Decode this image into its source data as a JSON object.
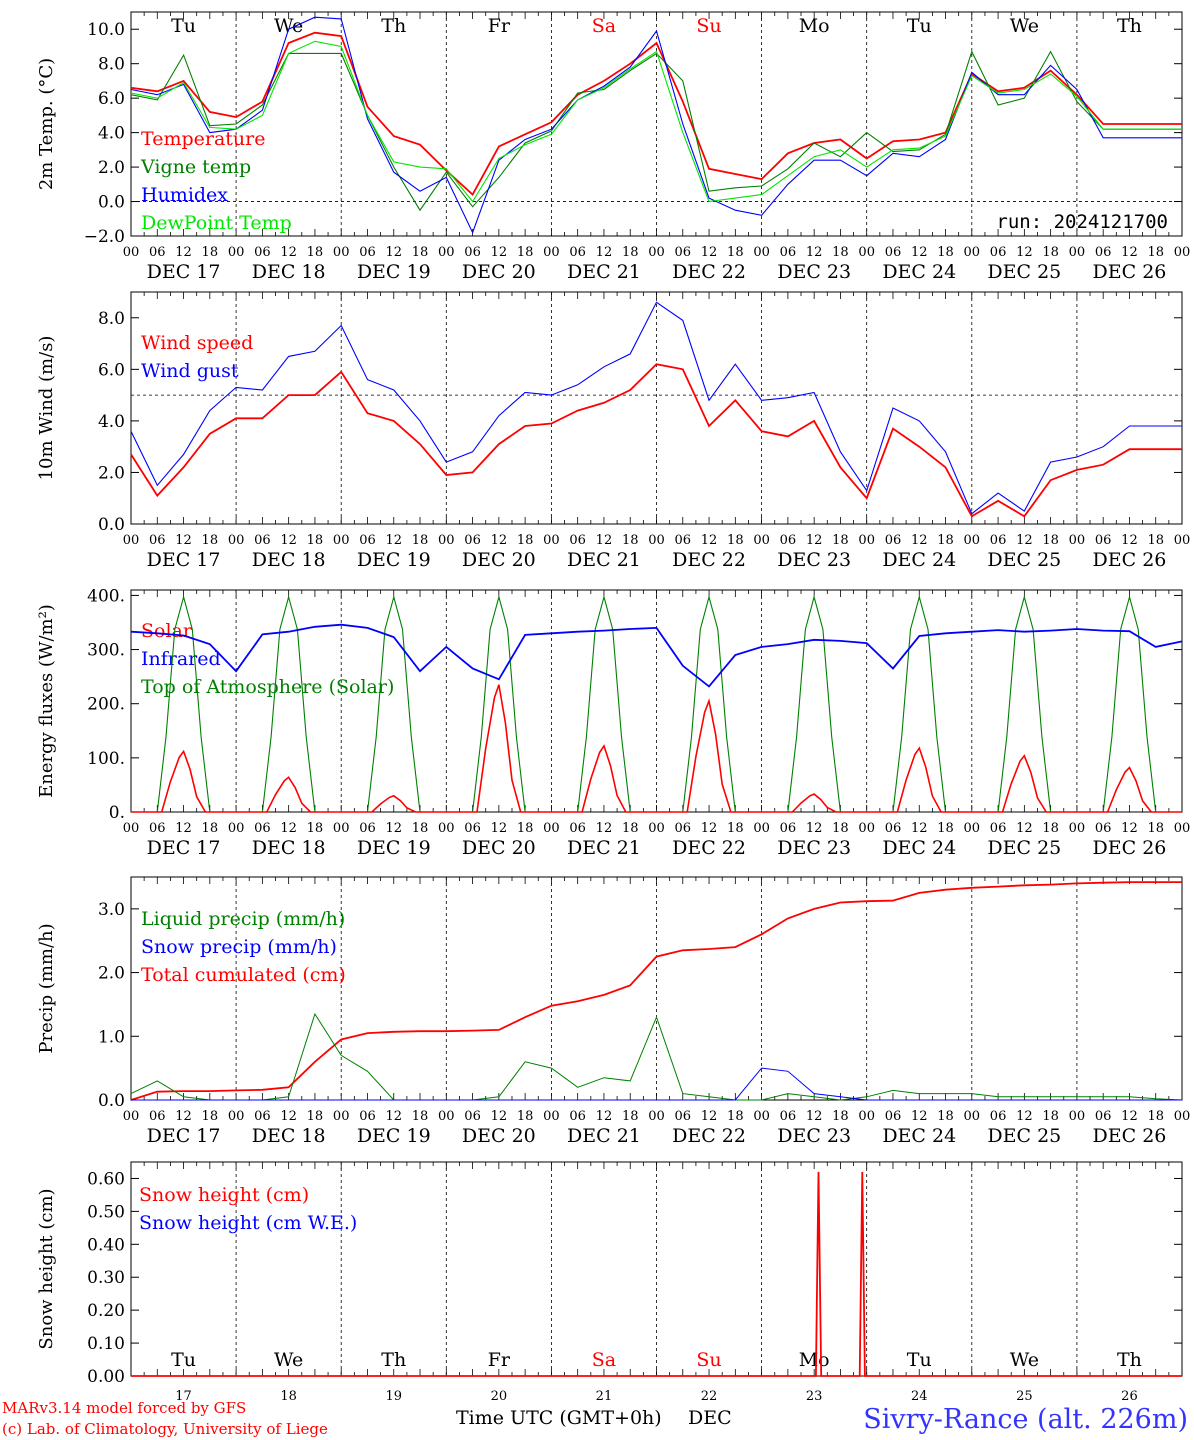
{
  "run_label": "run: 2024121700",
  "footer": {
    "credit_line1": "MARv3.14 model forced by GFS",
    "credit_line2": "(c) Lab. of Climatology, University of Liege",
    "xaxis_title": "Time UTC (GMT+0h)",
    "month_label": "DEC",
    "station": "Sivry-Rance (alt. 226m)"
  },
  "colors": {
    "red": "#ff0000",
    "green": "#008000",
    "blue": "#0000ff",
    "lime": "#00e600",
    "weekend": "#ff0000"
  },
  "time_axis": {
    "hour_ticks": [
      "00",
      "06",
      "12",
      "18"
    ],
    "last_tick": "00",
    "day_labels": [
      "DEC 17",
      "DEC 18",
      "DEC 19",
      "DEC 20",
      "DEC 21",
      "DEC 22",
      "DEC 23",
      "DEC 24",
      "DEC 25",
      "DEC 26"
    ],
    "weekdays": [
      "Tu",
      "We",
      "Th",
      "Fr",
      "Sa",
      "Su",
      "Mo",
      "Tu",
      "We",
      "Th"
    ],
    "weekend_days": [
      4,
      5
    ],
    "day_numbers": [
      "17",
      "18",
      "19",
      "20",
      "21",
      "22",
      "23",
      "24",
      "25",
      "26"
    ]
  },
  "chart_data": [
    {
      "type": "line",
      "ylabel": "2m Temp. (°C)",
      "ylim": [
        -2,
        11
      ],
      "yticks": [
        "−2.0",
        "0.0",
        "2.0",
        "4.0",
        "6.0",
        "8.0",
        "10.0"
      ],
      "yticks_values": [
        -2,
        0,
        2,
        4,
        6,
        8,
        10
      ],
      "reference_line": 0,
      "legend": [
        "Temperature",
        "Vigne temp",
        "Humidex",
        "DewPoint Temp"
      ],
      "x_hours": [
        0,
        6,
        12,
        18,
        24,
        30,
        36,
        42,
        48,
        54,
        60,
        66,
        72,
        78,
        84,
        90,
        96,
        102,
        108,
        114,
        120,
        126,
        132,
        138,
        144,
        150,
        156,
        162,
        168,
        174,
        180,
        186,
        192,
        198,
        204,
        210,
        216,
        222,
        228,
        234,
        240
      ],
      "series": [
        {
          "name": "Temperature",
          "color": "#ff0000",
          "values": [
            6.6,
            6.4,
            7.0,
            5.2,
            4.9,
            5.8,
            9.2,
            9.8,
            9.6,
            5.5,
            3.8,
            3.3,
            1.8,
            0.4,
            3.2,
            3.9,
            4.6,
            6.2,
            7.0,
            8.0,
            9.2,
            5.8,
            1.9,
            1.6,
            1.3,
            2.8,
            3.4,
            3.6,
            2.5,
            3.5,
            3.6,
            4.0,
            7.4,
            6.4,
            6.6,
            7.6,
            6.2,
            4.5,
            4.5,
            4.5,
            4.5
          ]
        },
        {
          "name": "Vigne temp",
          "color": "#008000",
          "values": [
            6.2,
            5.9,
            8.5,
            4.4,
            4.5,
            5.6,
            8.6,
            8.6,
            8.6,
            5.0,
            2.0,
            -0.5,
            1.7,
            -0.3,
            1.4,
            3.4,
            4.1,
            6.3,
            6.5,
            7.6,
            8.6,
            7.0,
            0.6,
            0.8,
            0.9,
            1.9,
            3.4,
            2.6,
            4.0,
            2.9,
            3.0,
            3.9,
            8.7,
            5.6,
            6.0,
            8.7,
            5.8,
            4.2,
            4.2,
            4.2,
            4.2
          ]
        },
        {
          "name": "Humidex",
          "color": "#0000ff",
          "values": [
            6.5,
            6.2,
            6.8,
            4.0,
            4.2,
            5.3,
            10.0,
            10.7,
            10.6,
            4.8,
            1.7,
            0.6,
            1.4,
            -1.8,
            2.4,
            3.6,
            4.2,
            5.9,
            6.7,
            7.8,
            9.9,
            4.5,
            0.2,
            -0.5,
            -0.8,
            1.0,
            2.4,
            2.4,
            1.5,
            2.8,
            2.6,
            3.6,
            7.5,
            6.2,
            6.2,
            7.9,
            6.5,
            3.7,
            3.7,
            3.7,
            3.7
          ]
        },
        {
          "name": "DewPoint Temp",
          "color": "#00e600",
          "values": [
            6.3,
            6.0,
            6.9,
            4.3,
            4.2,
            5.0,
            8.6,
            9.3,
            9.0,
            5.0,
            2.3,
            2.0,
            1.9,
            0.0,
            2.5,
            3.3,
            3.9,
            5.9,
            6.6,
            7.7,
            8.7,
            4.0,
            0.0,
            0.2,
            0.4,
            1.5,
            2.6,
            3.0,
            2.0,
            3.0,
            3.1,
            3.8,
            7.3,
            6.3,
            6.5,
            7.4,
            6.1,
            4.2,
            4.2,
            4.2,
            4.2
          ]
        }
      ]
    },
    {
      "type": "line",
      "ylabel": "10m Wind (m/s)",
      "ylim": [
        0,
        9
      ],
      "yticks": [
        "0.0",
        "2.0",
        "4.0",
        "6.0",
        "8.0"
      ],
      "yticks_values": [
        0,
        2,
        4,
        6,
        8
      ],
      "reference_line": 5,
      "legend": [
        "Wind speed",
        "Wind gust"
      ],
      "x_hours": [
        0,
        6,
        12,
        18,
        24,
        30,
        36,
        42,
        48,
        54,
        60,
        66,
        72,
        78,
        84,
        90,
        96,
        102,
        108,
        114,
        120,
        126,
        132,
        138,
        144,
        150,
        156,
        162,
        168,
        174,
        180,
        186,
        192,
        198,
        204,
        210,
        216,
        222,
        228,
        234,
        240
      ],
      "series": [
        {
          "name": "Wind speed",
          "color": "#ff0000",
          "values": [
            2.7,
            1.1,
            2.2,
            3.5,
            4.1,
            4.1,
            5.0,
            5.0,
            5.9,
            4.3,
            4.0,
            3.1,
            1.9,
            2.0,
            3.1,
            3.8,
            3.9,
            4.4,
            4.7,
            5.2,
            6.2,
            6.0,
            3.8,
            4.8,
            3.6,
            3.4,
            4.0,
            2.2,
            1.0,
            3.7,
            3.0,
            2.2,
            0.3,
            0.9,
            0.3,
            1.7,
            2.1,
            2.3,
            2.9,
            2.9,
            2.9
          ]
        },
        {
          "name": "Wind gust",
          "color": "#0000ff",
          "values": [
            3.6,
            1.5,
            2.7,
            4.4,
            5.3,
            5.2,
            6.5,
            6.7,
            7.7,
            5.6,
            5.2,
            4.0,
            2.4,
            2.8,
            4.2,
            5.1,
            5.0,
            5.4,
            6.1,
            6.6,
            8.6,
            7.9,
            4.8,
            6.2,
            4.8,
            4.9,
            5.1,
            2.8,
            1.3,
            4.5,
            4.0,
            2.8,
            0.4,
            1.2,
            0.5,
            2.4,
            2.6,
            3.0,
            3.8,
            3.8,
            3.8
          ]
        }
      ]
    },
    {
      "type": "line",
      "ylabel": "Energy fluxes (W/m²)",
      "ylim": [
        0,
        410
      ],
      "yticks": [
        "0.",
        "100.",
        "200.",
        "300.",
        "400."
      ],
      "yticks_values": [
        0,
        100,
        200,
        300,
        400
      ],
      "legend": [
        "Solar",
        "Infrared",
        "Top of Atmosphere (Solar)"
      ],
      "daily_peaks": {
        "Solar": [
          112,
          64,
          30,
          235,
          122,
          205,
          33,
          118,
          104,
          82
        ],
        "Top of Atmosphere (Solar)": [
          397,
          397,
          397,
          397,
          397,
          397,
          397,
          397,
          397,
          397
        ]
      },
      "series_infrared": {
        "name": "Infrared",
        "color": "#0000ff",
        "x_hours": [
          0,
          6,
          12,
          18,
          24,
          30,
          36,
          42,
          48,
          54,
          60,
          66,
          72,
          78,
          84,
          90,
          96,
          102,
          108,
          114,
          120,
          126,
          132,
          138,
          144,
          150,
          156,
          162,
          168,
          174,
          180,
          186,
          192,
          198,
          204,
          210,
          216,
          222,
          228,
          234,
          240
        ],
        "values": [
          333,
          330,
          326,
          310,
          260,
          328,
          333,
          342,
          346,
          340,
          323,
          260,
          305,
          265,
          245,
          327,
          330,
          333,
          335,
          338,
          340,
          270,
          232,
          290,
          305,
          310,
          318,
          316,
          312,
          265,
          325,
          330,
          333,
          336,
          333,
          335,
          338,
          335,
          334,
          305,
          315
        ]
      }
    },
    {
      "type": "line",
      "ylabel": "Precip (mm/h)",
      "ylim": [
        0,
        3.5
      ],
      "yticks": [
        "0.0",
        "1.0",
        "2.0",
        "3.0"
      ],
      "yticks_values": [
        0,
        1,
        2,
        3
      ],
      "legend": [
        "Liquid precip (mm/h)",
        "Snow precip (mm/h)",
        "Total cumulated (cm)"
      ],
      "x_hours": [
        0,
        6,
        12,
        18,
        24,
        30,
        36,
        42,
        48,
        54,
        60,
        66,
        72,
        78,
        84,
        90,
        96,
        102,
        108,
        114,
        120,
        126,
        132,
        138,
        144,
        150,
        156,
        162,
        168,
        174,
        180,
        186,
        192,
        198,
        204,
        210,
        216,
        222,
        228,
        234,
        240
      ],
      "series": [
        {
          "name": "Total cumulated (cm)",
          "color": "#ff0000",
          "values": [
            0.0,
            0.13,
            0.14,
            0.14,
            0.15,
            0.16,
            0.2,
            0.6,
            0.95,
            1.05,
            1.07,
            1.08,
            1.08,
            1.09,
            1.1,
            1.3,
            1.48,
            1.55,
            1.65,
            1.8,
            2.25,
            2.35,
            2.37,
            2.4,
            2.6,
            2.85,
            3.0,
            3.1,
            3.12,
            3.13,
            3.25,
            3.3,
            3.33,
            3.35,
            3.37,
            3.38,
            3.4,
            3.41,
            3.42,
            3.42,
            3.42
          ]
        },
        {
          "name": "Liquid precip (mm/h)",
          "color": "#008000",
          "values": [
            0.1,
            0.3,
            0.05,
            0.0,
            0.0,
            0.0,
            0.05,
            1.35,
            0.7,
            0.45,
            0.0,
            0.0,
            0.0,
            0.0,
            0.05,
            0.6,
            0.5,
            0.2,
            0.35,
            0.3,
            1.3,
            0.1,
            0.05,
            0.0,
            0.0,
            0.1,
            0.05,
            0.0,
            0.05,
            0.15,
            0.1,
            0.1,
            0.1,
            0.05,
            0.05,
            0.05,
            0.05,
            0.05,
            0.05,
            0.02,
            0.0
          ]
        },
        {
          "name": "Snow precip (mm/h)",
          "color": "#0000ff",
          "values": [
            0,
            0,
            0,
            0,
            0,
            0,
            0,
            0,
            0,
            0,
            0,
            0,
            0,
            0,
            0,
            0,
            0,
            0,
            0,
            0,
            0,
            0,
            0,
            0,
            0.5,
            0.45,
            0.1,
            0.05,
            0,
            0,
            0,
            0,
            0,
            0,
            0,
            0,
            0,
            0,
            0,
            0,
            0
          ]
        }
      ]
    },
    {
      "type": "line",
      "ylabel": "Snow height (cm)",
      "ylim": [
        0,
        0.65
      ],
      "yticks": [
        "0.00",
        "0.10",
        "0.20",
        "0.30",
        "0.40",
        "0.50",
        "0.60"
      ],
      "yticks_values": [
        0,
        0.1,
        0.2,
        0.3,
        0.4,
        0.5,
        0.6
      ],
      "legend": [
        "Snow height (cm)",
        "Snow height (cm W.E.)"
      ],
      "series": [
        {
          "name": "Snow height (cm)",
          "color": "#ff0000",
          "spikes_hours": [
            [
              157,
              0.62
            ],
            [
              167,
              0.62
            ]
          ]
        },
        {
          "name": "Snow height (cm W.E.)",
          "color": "#0000ff",
          "spikes_hours": []
        }
      ]
    }
  ]
}
